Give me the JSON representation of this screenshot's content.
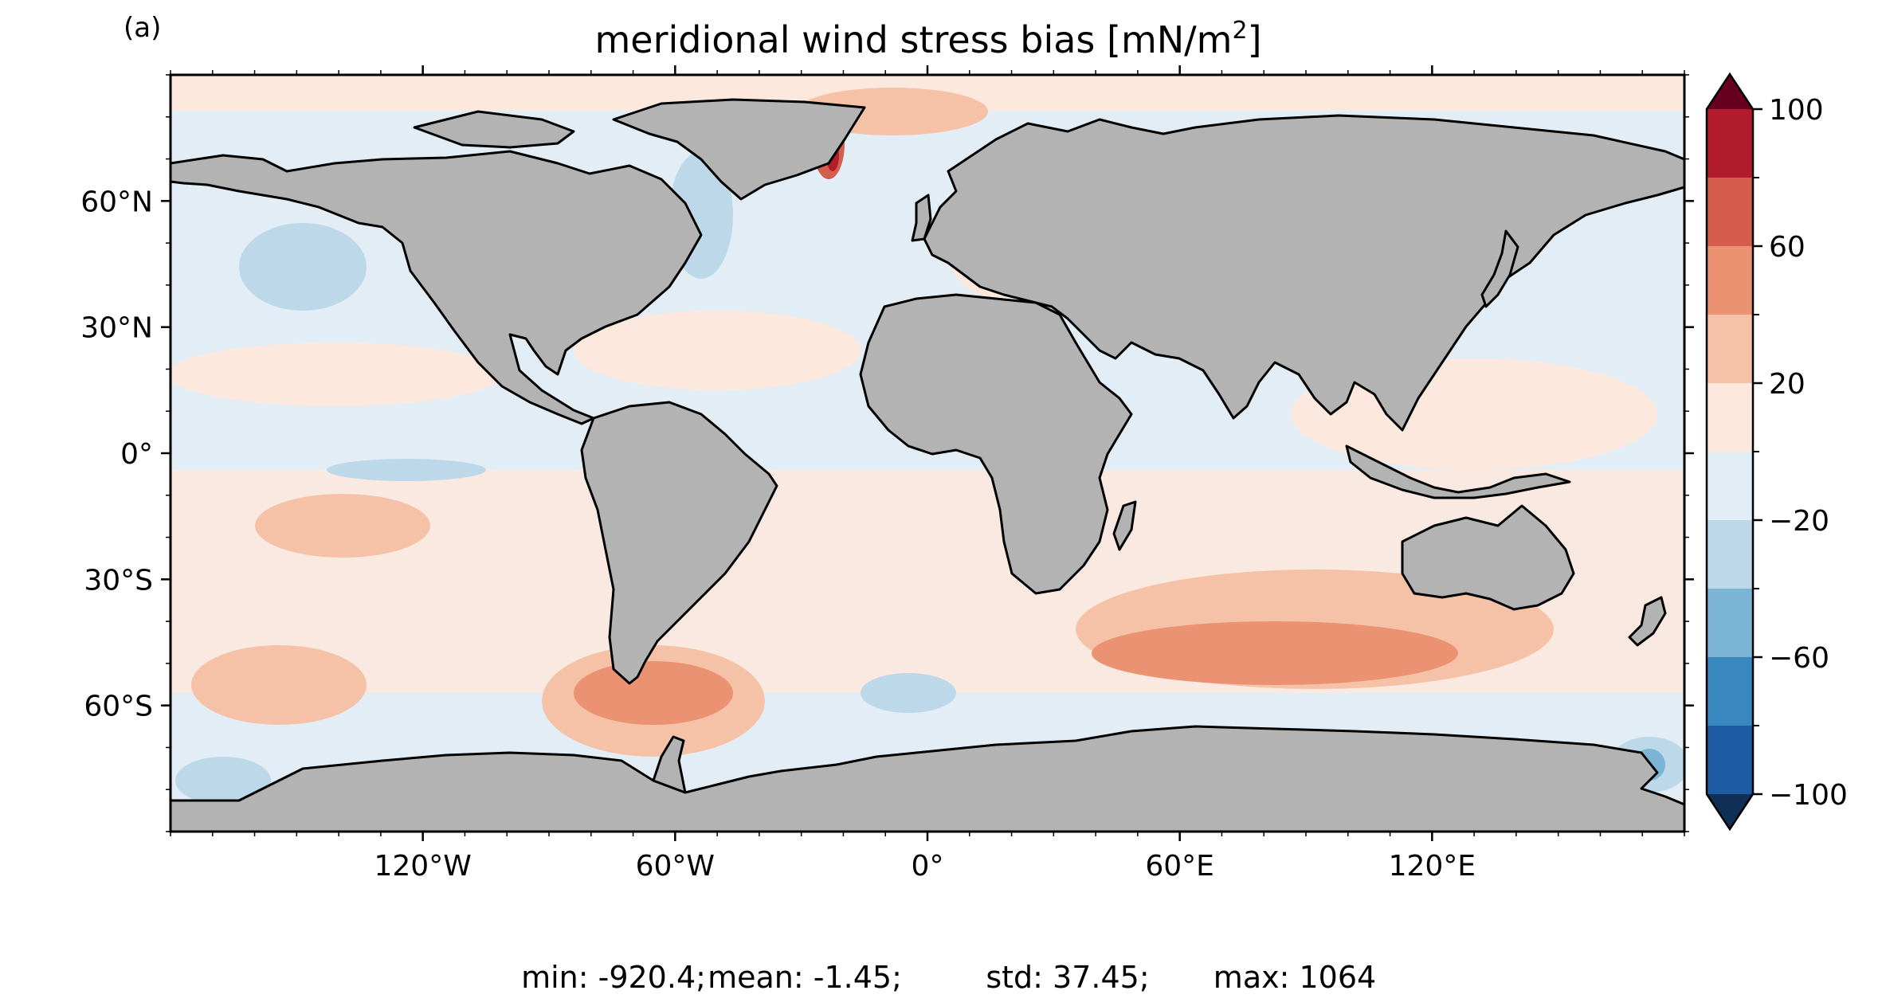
{
  "panel_label": "(a)",
  "title": {
    "text": "meridional wind stress bias [mN/m",
    "superscript": "2",
    "close": "]"
  },
  "map": {
    "projection": "PlateCarree",
    "extent": {
      "lon": [
        -180,
        180
      ],
      "lat": [
        -90,
        90
      ]
    },
    "land_color": "#b3b3b3",
    "coastline_color": "#000000"
  },
  "lat_ticks": [
    {
      "value": 60,
      "label": "60°N"
    },
    {
      "value": 30,
      "label": "30°N"
    },
    {
      "value": 0,
      "label": "0°"
    },
    {
      "value": -30,
      "label": "30°S"
    },
    {
      "value": -60,
      "label": "60°S"
    }
  ],
  "lon_ticks": [
    {
      "value": -120,
      "label": "120°W"
    },
    {
      "value": -60,
      "label": "60°W"
    },
    {
      "value": 0,
      "label": "0°"
    },
    {
      "value": 60,
      "label": "60°E"
    },
    {
      "value": 120,
      "label": "120°E"
    }
  ],
  "colorbar": {
    "levels": [
      -100,
      -80,
      -60,
      -40,
      -20,
      0,
      20,
      40,
      60,
      80,
      100
    ],
    "colors": [
      "#1d5ca2",
      "#3a88c0",
      "#7cb4d6",
      "#bcd8e9",
      "#e2edf5",
      "#fde8dd",
      "#f6c2a7",
      "#eb9272",
      "#d45d4d",
      "#b21b2c"
    ],
    "under_color": "#0f2f57",
    "over_color": "#67001f",
    "extend": "both",
    "ticks": [
      {
        "value": 100,
        "label": "100"
      },
      {
        "value": 60,
        "label": "60"
      },
      {
        "value": 20,
        "label": "20"
      },
      {
        "value": -20,
        "label": "−20"
      },
      {
        "value": -60,
        "label": "−60"
      },
      {
        "value": -100,
        "label": "−100"
      }
    ]
  },
  "stats": {
    "min": "min: -920.4;",
    "mean": "mean: -1.45;",
    "std": "std: 37.45;",
    "max": "max: 1064"
  }
}
